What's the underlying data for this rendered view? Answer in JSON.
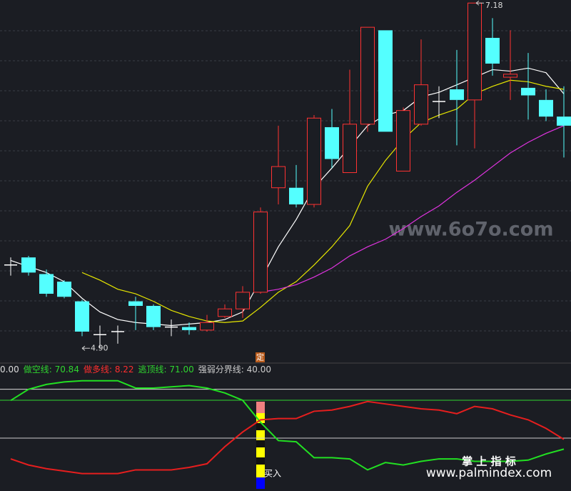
{
  "chart_data": [
    {
      "type": "candlestick",
      "open": [
        5.45,
        5.5,
        5.39,
        5.34,
        5.21,
        4.99,
        5.01,
        5.21,
        5.18,
        5.04,
        5.04,
        5.02,
        5.11,
        5.16,
        5.27,
        5.96,
        5.96,
        5.85,
        6.36,
        6.06,
        6.38,
        7.0,
        6.07,
        6.38,
        6.53,
        6.61,
        6.54,
        6.95,
        6.69,
        6.62,
        6.54,
        6.43
      ],
      "high": [
        5.5,
        5.51,
        5.42,
        5.35,
        5.22,
        5.05,
        5.05,
        5.24,
        5.19,
        5.09,
        5.07,
        5.12,
        5.19,
        5.31,
        5.83,
        6.37,
        6.11,
        6.44,
        6.48,
        6.74,
        7.02,
        7.0,
        6.49,
        6.94,
        6.63,
        6.87,
        7.18,
        7.08,
        7.0,
        6.85,
        6.61,
        6.63
      ],
      "low": [
        5.38,
        5.38,
        5.24,
        5.23,
        4.98,
        4.9,
        4.93,
        5.02,
        5.02,
        4.98,
        4.99,
        5.01,
        5.1,
        5.1,
        5.26,
        5.85,
        5.83,
        5.83,
        6.09,
        6.06,
        6.33,
        6.33,
        6.07,
        6.37,
        6.42,
        6.24,
        6.22,
        6.7,
        6.54,
        6.41,
        6.4,
        6.16
      ],
      "close": [
        5.45,
        5.4,
        5.26,
        5.24,
        5.01,
        4.99,
        5.01,
        5.18,
        5.04,
        5.04,
        5.02,
        5.07,
        5.16,
        5.27,
        5.8,
        6.1,
        5.85,
        6.42,
        6.15,
        6.38,
        7.02,
        6.33,
        6.47,
        6.64,
        6.53,
        6.54,
        7.18,
        6.78,
        6.71,
        6.57,
        6.43,
        6.37
      ],
      "up_color": "#ff3232",
      "down_color": "#54ffff",
      "flat_color": "#ffffff",
      "lines": [
        {
          "color": "#ffffff",
          "values": [
            5.48,
            5.44,
            5.4,
            5.34,
            5.23,
            5.14,
            5.09,
            5.07,
            5.06,
            5.05,
            5.06,
            5.07,
            5.09,
            5.14,
            5.35,
            5.57,
            5.75,
            5.96,
            6.09,
            6.23,
            6.37,
            6.44,
            6.47,
            6.56,
            6.59,
            6.64,
            6.69,
            6.74,
            6.73,
            6.75,
            6.72,
            6.58
          ]
        },
        {
          "color": "#e6e600",
          "values": [
            null,
            null,
            null,
            null,
            5.4,
            5.35,
            5.29,
            5.26,
            5.21,
            5.15,
            5.11,
            5.08,
            5.07,
            5.08,
            5.17,
            5.27,
            5.34,
            5.45,
            5.57,
            5.71,
            5.97,
            6.14,
            6.28,
            6.39,
            6.44,
            6.48,
            6.58,
            6.63,
            6.67,
            6.66,
            6.63,
            6.61
          ]
        },
        {
          "color": "#e033e0",
          "values": [
            null,
            null,
            null,
            null,
            null,
            null,
            null,
            null,
            null,
            null,
            null,
            null,
            null,
            null,
            5.27,
            5.29,
            5.32,
            5.37,
            5.43,
            5.51,
            5.57,
            5.62,
            5.69,
            5.77,
            5.84,
            5.93,
            6.01,
            6.1,
            6.19,
            6.26,
            6.32,
            6.37
          ]
        }
      ],
      "high_label": 7.18,
      "low_label": {
        "value": 4.9,
        "label": "4.90"
      },
      "badge": "定",
      "ylim": [
        4.84,
        7.2
      ]
    },
    {
      "type": "line",
      "legend": [
        {
          "value": {
            "value": 0,
            "label": "0.00"
          },
          "color": "#dddddd"
        },
        {
          "name": "做空线:",
          "value": 70.84,
          "color": "#2fd52f"
        },
        {
          "name": "做多线:",
          "value": 8.22,
          "color": "#ff2e2e"
        },
        {
          "name": "逃顶线:",
          "value": {
            "value": 71,
            "label": "71.00"
          },
          "color": "#2fd52f"
        },
        {
          "name": "强弱分界线:",
          "value": {
            "value": 40,
            "label": "40.00"
          },
          "color": "#cccccc"
        }
      ],
      "series": [
        {
          "name": "做空线",
          "color": "#22e022",
          "values": [
            70.84,
            80,
            84,
            86,
            87,
            87,
            87,
            81,
            81,
            82,
            83,
            81,
            77,
            71,
            53,
            38,
            37,
            24,
            24,
            23,
            14,
            20,
            18,
            21,
            23,
            23,
            21,
            21,
            21,
            22,
            27,
            31
          ]
        },
        {
          "name": "做多线",
          "color": "#e61e1e",
          "values": [
            23,
            18,
            15,
            13,
            11,
            11,
            11,
            14,
            14,
            14,
            16,
            19,
            33,
            45,
            55,
            56,
            56,
            62,
            63,
            66,
            70,
            68,
            66,
            64,
            63,
            60,
            66,
            64,
            59,
            55,
            48,
            39
          ]
        }
      ],
      "hlines": [
        {
          "value": 80,
          "color": "#dddddd"
        },
        {
          "value": 71,
          "color": "#2fd52f"
        },
        {
          "value": 40,
          "color": "#cccccc"
        }
      ],
      "signal_label": "买入",
      "ylim": [
        -3.3,
        100.3
      ]
    }
  ],
  "watermarks": {
    "site": "www.6o7o.com",
    "brand": "掌 上 指 标",
    "url": "www.palmindex.com"
  }
}
